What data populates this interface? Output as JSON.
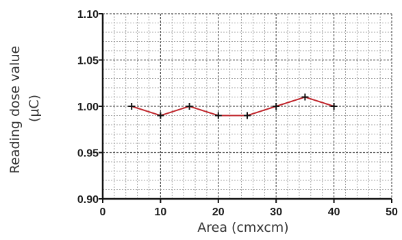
{
  "chart_data": {
    "type": "line",
    "title": "",
    "xlabel": "Area (cmxcm)",
    "ylabel_line1": "Reading dose value",
    "ylabel_line2": "(μC)",
    "xlim": [
      0,
      50
    ],
    "ylim": [
      0.9,
      1.1
    ],
    "x_ticks": [
      0,
      10,
      20,
      30,
      40,
      50
    ],
    "y_ticks": [
      0.9,
      0.95,
      1.0,
      1.05,
      1.1
    ],
    "x_tick_labels": [
      "0",
      "10",
      "20",
      "30",
      "40",
      "50"
    ],
    "y_tick_labels": [
      "0.90",
      "0.95",
      "1.00",
      "1.05",
      "1.10"
    ],
    "grid": true,
    "series": [
      {
        "color": "#c0272d",
        "marker_color": "#111111",
        "x": [
          5,
          10,
          15,
          20,
          25,
          30,
          35,
          40
        ],
        "y": [
          1.0,
          0.99,
          1.0,
          0.99,
          0.99,
          1.0,
          1.01,
          1.0
        ]
      }
    ]
  }
}
